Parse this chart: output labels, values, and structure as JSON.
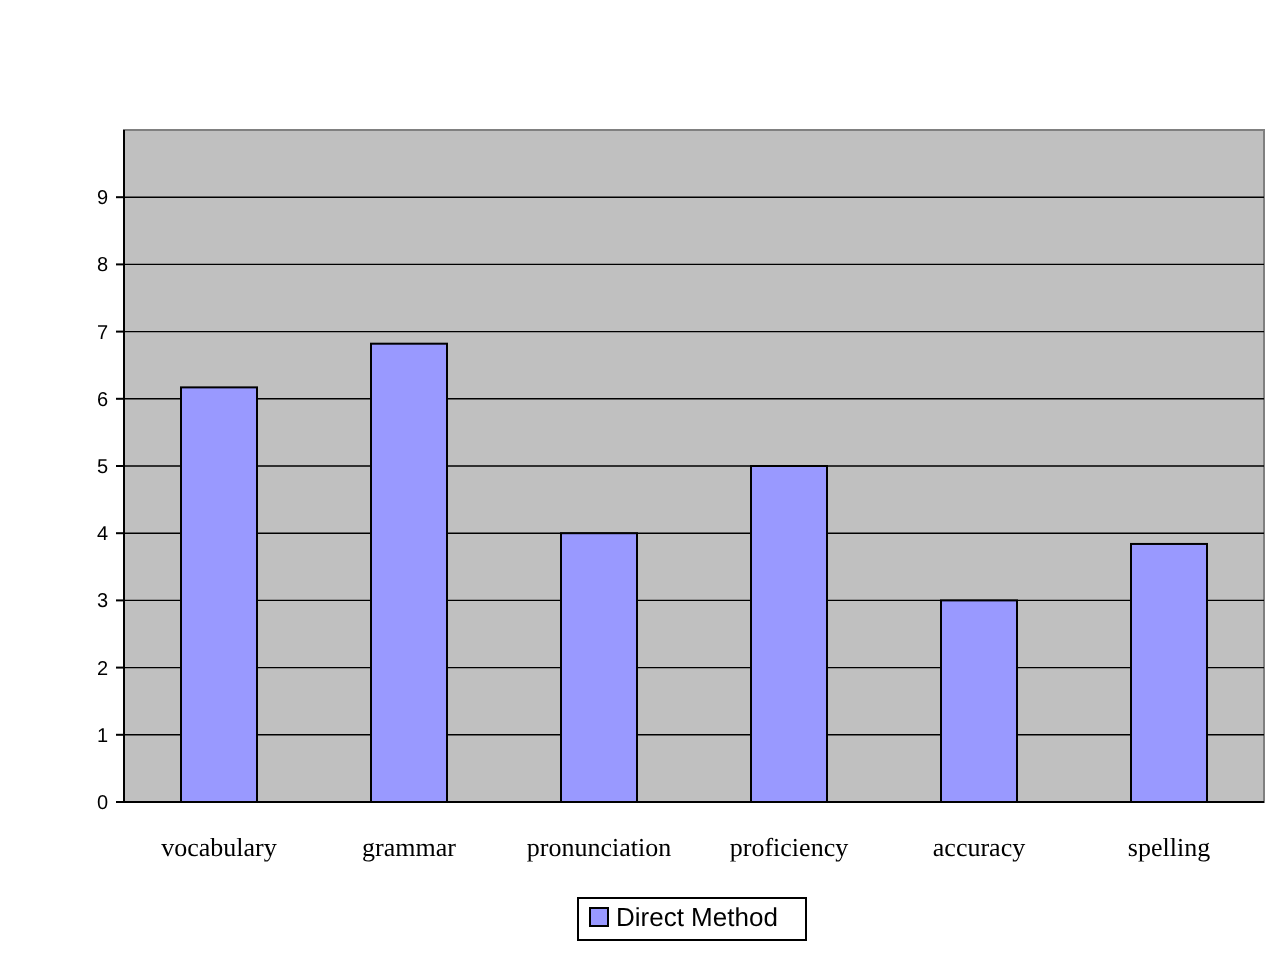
{
  "chart_data": {
    "type": "bar",
    "categories": [
      "vocabulary",
      "grammar",
      "pronunciation",
      "proficiency",
      "accuracy",
      "spelling"
    ],
    "series": [
      {
        "name": "Direct Method",
        "color": "#9999ff",
        "values": [
          6.17,
          6.82,
          4,
          5,
          3,
          3.84
        ]
      }
    ],
    "ylim": [
      0,
      10
    ],
    "yticks": [
      0,
      1,
      2,
      3,
      4,
      5,
      6,
      7,
      8,
      9
    ],
    "grid": "y",
    "legend": "bottom"
  }
}
